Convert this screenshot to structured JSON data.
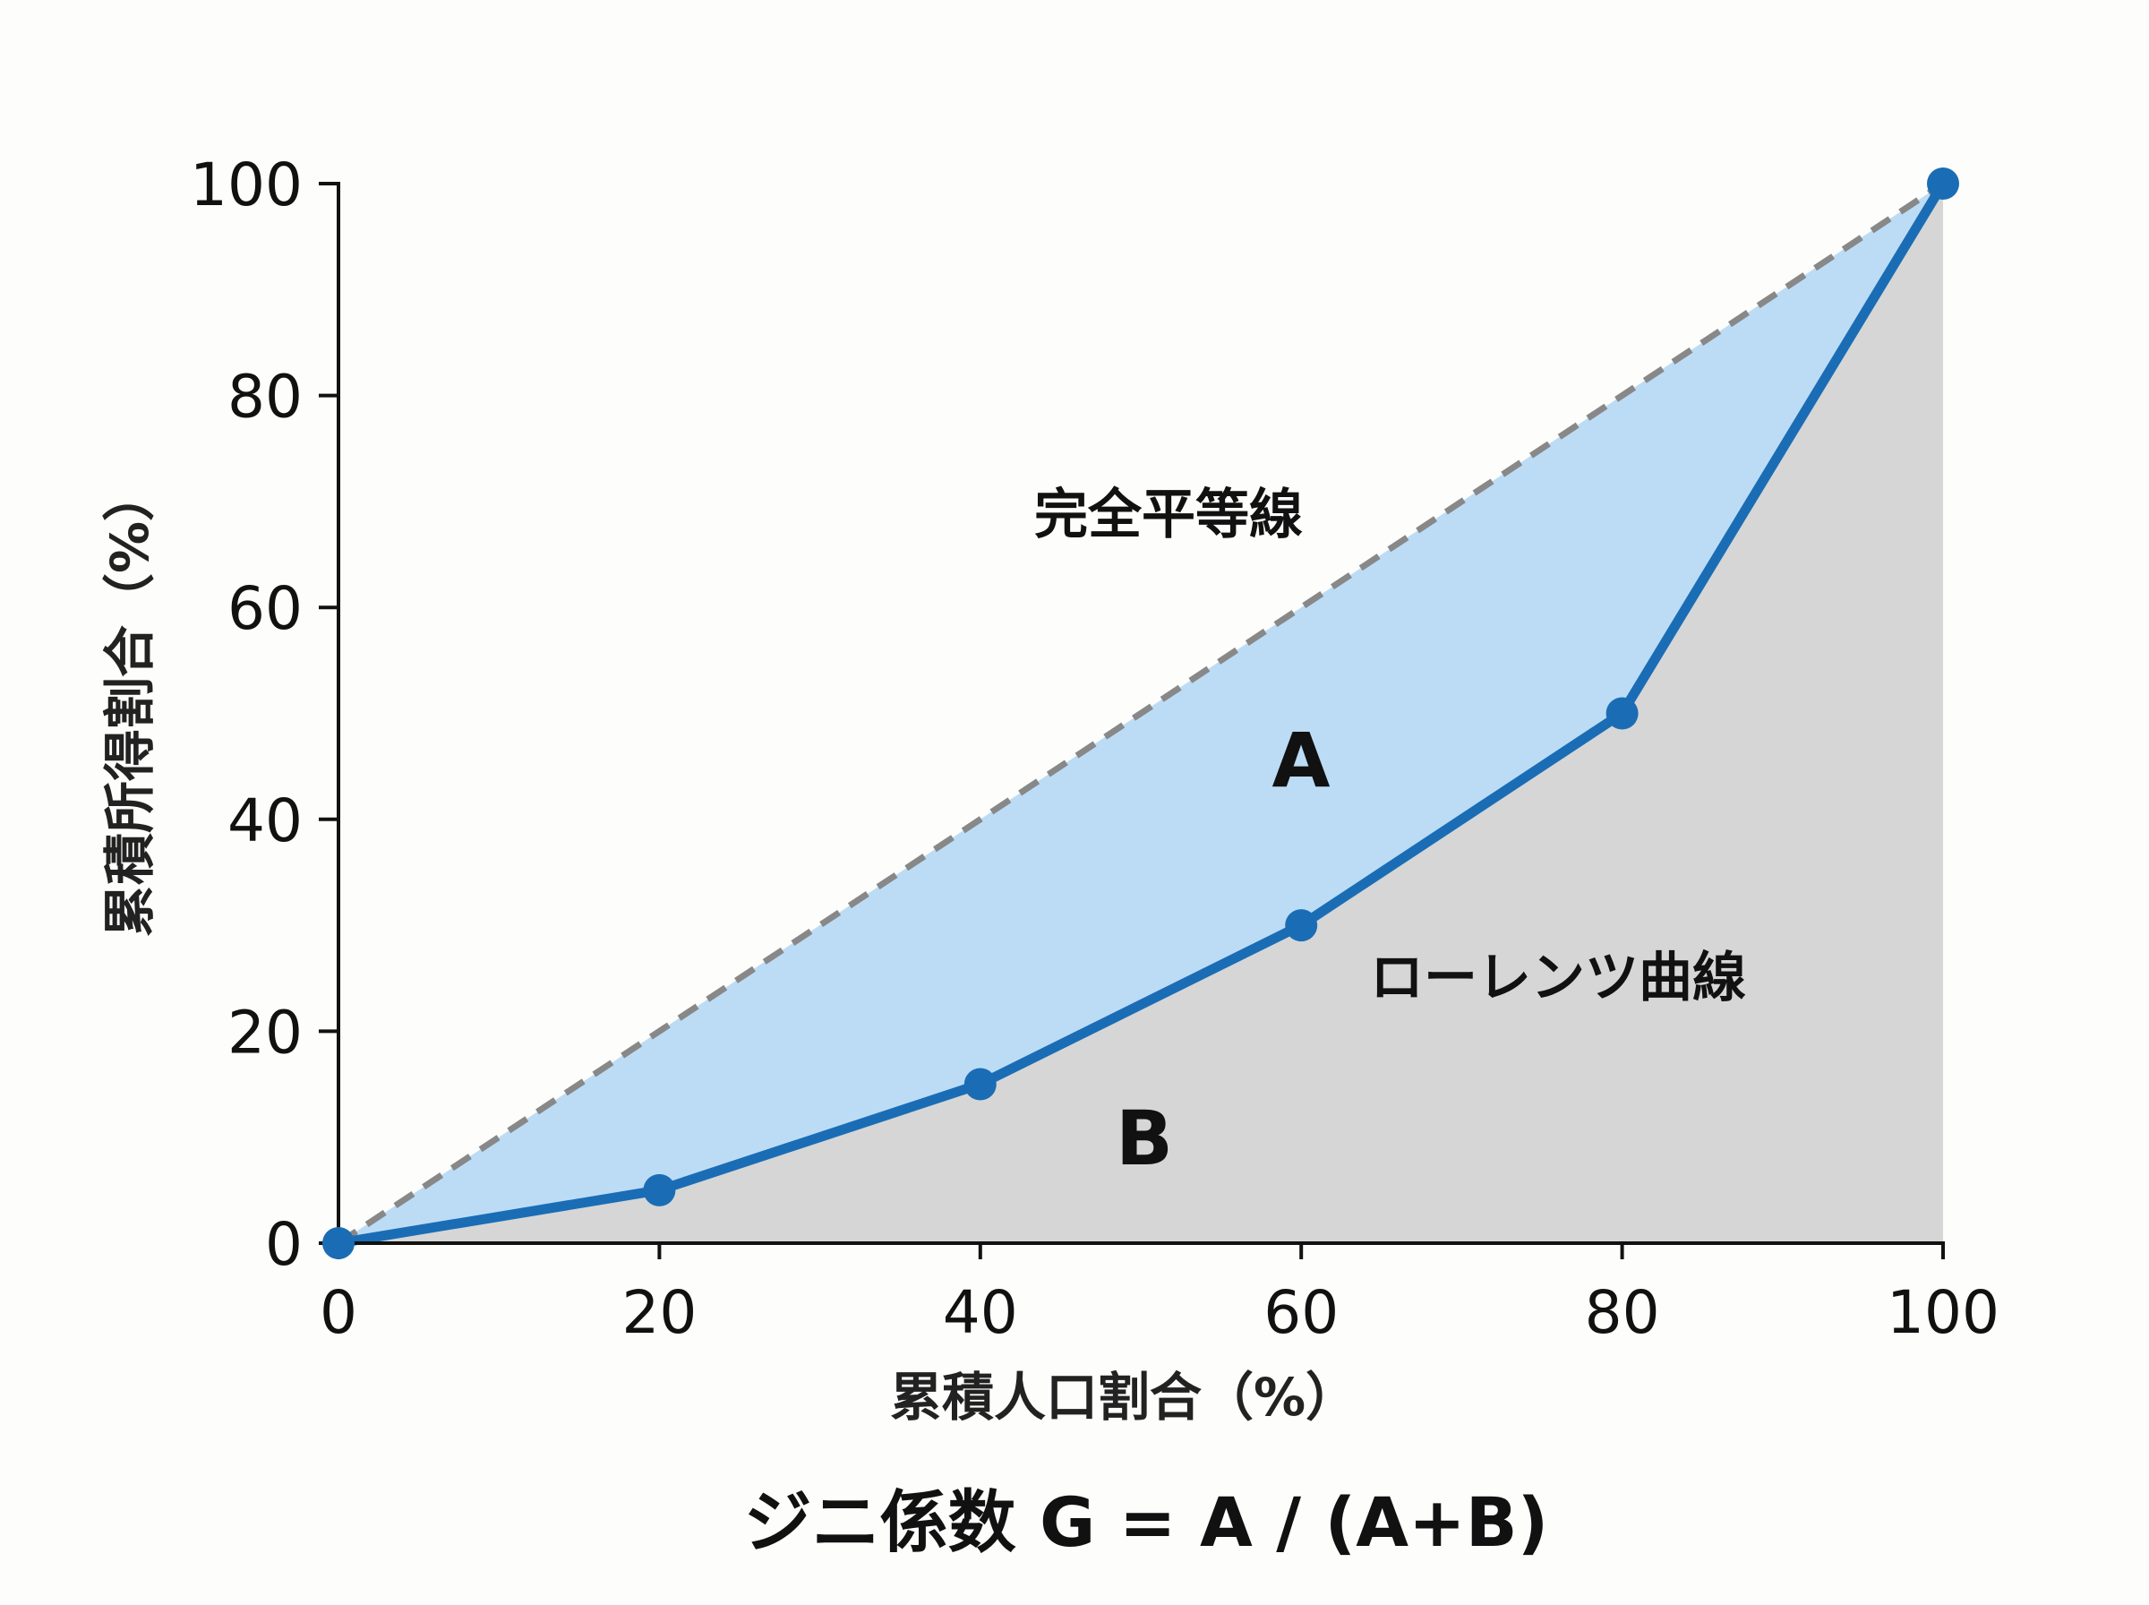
{
  "chart_data": {
    "type": "line",
    "x": [
      0,
      20,
      40,
      60,
      80,
      100
    ],
    "series": [
      {
        "name": "ローレンツ曲線",
        "values": [
          0,
          5,
          15,
          30,
          50,
          100
        ],
        "color": "#1a6db5"
      },
      {
        "name": "完全平等線",
        "values": [
          0,
          20,
          40,
          60,
          80,
          100
        ],
        "color": "#888888",
        "style": "dashed"
      }
    ],
    "xlabel": "累積人口割合（%）",
    "ylabel": "累積所得割合（%）",
    "xlim": [
      0,
      100
    ],
    "ylim": [
      0,
      100
    ],
    "xticks": [
      "0",
      "20",
      "40",
      "60",
      "80",
      "100"
    ],
    "yticks": [
      "0",
      "20",
      "40",
      "60",
      "80",
      "100"
    ],
    "regions": [
      {
        "label": "A",
        "between": "完全平等線 and ローレンツ曲線",
        "color": "#bcdcf6"
      },
      {
        "label": "B",
        "between": "ローレンツ曲線 and x-axis",
        "color": "#d6d6d6"
      }
    ],
    "annotations": {
      "equality_line": "完全平等線",
      "lorenz_curve": "ローレンツ曲線",
      "region_a": "A",
      "region_b": "B",
      "formula": "ジニ係数 G = A / (A+B)"
    },
    "grid": false,
    "legend": "none"
  }
}
